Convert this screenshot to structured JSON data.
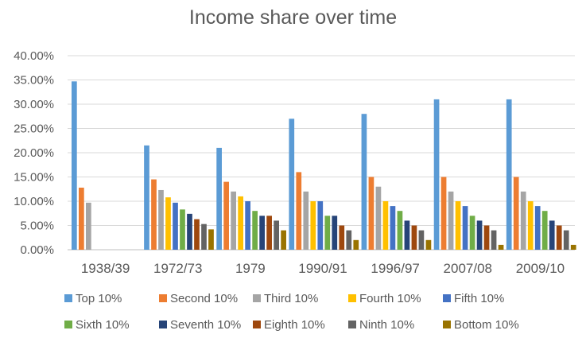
{
  "chart_data": {
    "type": "bar",
    "title": "Income share over time",
    "xlabel": "",
    "ylabel": "",
    "ylim": [
      0,
      0.4
    ],
    "yticks": [
      "0.00%",
      "5.00%",
      "10.00%",
      "15.00%",
      "20.00%",
      "25.00%",
      "30.00%",
      "35.00%",
      "40.00%"
    ],
    "grid": true,
    "legend_position": "bottom",
    "categories": [
      "1938/39",
      "1972/73",
      "1979",
      "1990/91",
      "1996/97",
      "2007/08",
      "2009/10"
    ],
    "series": [
      {
        "name": "Top 10%",
        "color": "#5B9BD5",
        "values": [
          0.347,
          0.215,
          0.21,
          0.27,
          0.28,
          0.31,
          0.31
        ]
      },
      {
        "name": "Second 10%",
        "color": "#ED7D31",
        "values": [
          0.128,
          0.145,
          0.14,
          0.16,
          0.15,
          0.15,
          0.15
        ]
      },
      {
        "name": "Third 10%",
        "color": "#A5A5A5",
        "values": [
          0.097,
          0.123,
          0.12,
          0.12,
          0.13,
          0.12,
          0.12
        ]
      },
      {
        "name": "Fourth 10%",
        "color": "#FFC000",
        "values": [
          null,
          0.108,
          0.11,
          0.1,
          0.1,
          0.1,
          0.1
        ]
      },
      {
        "name": "Fifth 10%",
        "color": "#4472C4",
        "values": [
          null,
          0.097,
          0.1,
          0.1,
          0.09,
          0.09,
          0.09
        ]
      },
      {
        "name": "Sixth 10%",
        "color": "#70AD47",
        "values": [
          null,
          0.083,
          0.08,
          0.07,
          0.08,
          0.07,
          0.08
        ]
      },
      {
        "name": "Seventh 10%",
        "color": "#264478",
        "values": [
          null,
          0.074,
          0.07,
          0.07,
          0.06,
          0.06,
          0.06
        ]
      },
      {
        "name": "Eighth 10%",
        "color": "#9E480E",
        "values": [
          null,
          0.063,
          0.07,
          0.05,
          0.05,
          0.05,
          0.05
        ]
      },
      {
        "name": "Ninth 10%",
        "color": "#636363",
        "values": [
          null,
          0.053,
          0.06,
          0.04,
          0.04,
          0.04,
          0.04
        ]
      },
      {
        "name": "Bottom 10%",
        "color": "#997300",
        "values": [
          null,
          0.042,
          0.04,
          0.02,
          0.02,
          0.01,
          0.01
        ]
      }
    ]
  }
}
